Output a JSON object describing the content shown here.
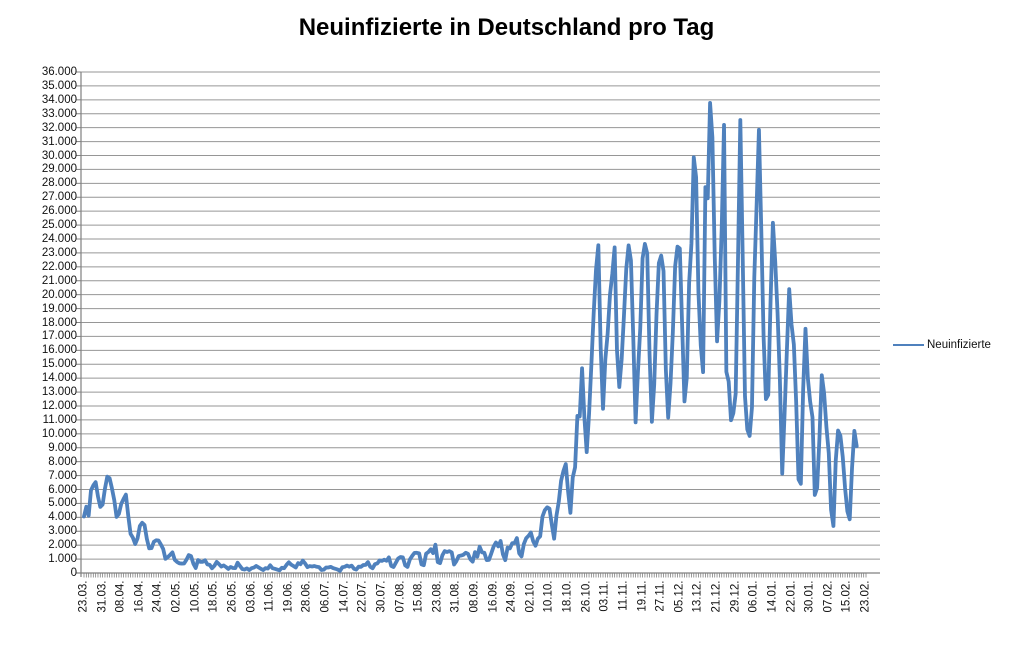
{
  "title": "Neuinfizierte in Deutschland pro Tag",
  "legend": {
    "label": "Neuinfizierte"
  },
  "colors": {
    "series": "#4F81BD",
    "gridline": "#969696",
    "axis": "#808080",
    "label_text": "#111111",
    "title_text": "#000000",
    "background": "#FFFFFF"
  },
  "chart_data": {
    "type": "line",
    "title": "Neuinfizierte in Deutschland pro Tag",
    "legend_entries": [
      "Neuinfizierte"
    ],
    "legend_position": "right",
    "grid": true,
    "y_axis": {
      "min": 0,
      "max": 36000,
      "step": 1000,
      "tick_labels": [
        "36.000",
        "35.000",
        "34.000",
        "33.000",
        "32.000",
        "31.000",
        "30.000",
        "29.000",
        "28.000",
        "27.000",
        "26.000",
        "25.000",
        "24.000",
        "23.000",
        "22.000",
        "21.000",
        "20.000",
        "19.000",
        "18.000",
        "17.000",
        "16.000",
        "15.000",
        "14.000",
        "13.000",
        "12.000",
        "11.000",
        "10.000",
        "9.000",
        "8.000",
        "7.000",
        "6.000",
        "5.000",
        "4.000",
        "3.000",
        "2.000",
        "1.000",
        "0"
      ]
    },
    "x_axis": {
      "tick_labels": [
        "23.03.",
        "31.03.",
        "08.04.",
        "16.04.",
        "24.04.",
        "02.05.",
        "10.05.",
        "18.05.",
        "26.05.",
        "03.06.",
        "11.06.",
        "19.06.",
        "28.06.",
        "06.07.",
        "14.07.",
        "22.07.",
        "30.07.",
        "07.08.",
        "15.08.",
        "23.08.",
        "31.08.",
        "08.09.",
        "16.09.",
        "24.09.",
        "02.10.",
        "10.10.",
        "18.10.",
        "26.10.",
        "03.11.",
        "11.11.",
        "19.11.",
        "27.11.",
        "05.12.",
        "13.12.",
        "21.12.",
        "29.12.",
        "06.01.",
        "14.01.",
        "22.01.",
        "30.01.",
        "07.02.",
        "15.02.",
        "23.02."
      ],
      "rows_per_label": 8
    },
    "series": [
      {
        "name": "Neuinfizierte",
        "color": "#4F81BD",
        "daily_values": [
          4062,
          4764,
          4118,
          5940,
          6294,
          6528,
          5507,
          4751,
          4923,
          6064,
          6922,
          6813,
          6082,
          5236,
          4031,
          4249,
          4974,
          5323,
          5633,
          4133,
          2821,
          2537,
          2082,
          2486,
          3380,
          3609,
          3450,
          2458,
          1775,
          1785,
          2237,
          2352,
          2337,
          2055,
          1737,
          1018,
          1144,
          1304,
          1478,
          945,
          793,
          697,
          679,
          685,
          947,
          1284,
          1209,
          667,
          357,
          933,
          798,
          802,
          913,
          620,
          583,
          342,
          513,
          797,
          638,
          460,
          548,
          431,
          289,
          432,
          362,
          353,
          741,
          507,
          286,
          247,
          333,
          213,
          342,
          394,
          507,
          407,
          301,
          214,
          350,
          318,
          555,
          348,
          301,
          247,
          192,
          378,
          345,
          580,
          770,
          601,
          503,
          397,
          712,
          630,
          890,
          687,
          422,
          498,
          466,
          503,
          446,
          422,
          219,
          239,
          390,
          397,
          442,
          356,
          305,
          248,
          159,
          412,
          444,
          534,
          455,
          529,
          305,
          249,
          454,
          445,
          569,
          583,
          781,
          445,
          340,
          633,
          684,
          902,
          870,
          955,
          879,
          1122,
          509,
          432,
          741,
          1045,
          1147,
          1122,
          555,
          436,
          966,
          1226,
          1445,
          1449,
          1415,
          625,
          561,
          1390,
          1510,
          1707,
          1427,
          2034,
          782,
          711,
          1278,
          1576,
          1507,
          1571,
          1479,
          610,
          852,
          1218,
          1256,
          1311,
          1453,
          1378,
          988,
          814,
          1499,
          1176,
          1892,
          1484,
          1459,
          927,
          948,
          1407,
          1901,
          2194,
          1916,
          2297,
          1345,
          922,
          1821,
          1769,
          2143,
          2153,
          2507,
          1411,
          1192,
          2089,
          2503,
          2673,
          2906,
          2279,
          1959,
          2467,
          2639,
          4058,
          4516,
          4721,
          4622,
          3483,
          2467,
          4122,
          5132,
          6638,
          7334,
          7830,
          5862,
          4325,
          6868,
          7595,
          11287,
          11242,
          14714,
          11176,
          8685,
          11409,
          14964,
          18681,
          21806,
          23553,
          16200,
          11800,
          15352,
          17214,
          19990,
          21506,
          23399,
          16017,
          13363,
          15332,
          18487,
          21866,
          23542,
          22461,
          16947,
          10824,
          14419,
          17561,
          22609,
          23648,
          22964,
          15741,
          10864,
          13554,
          18633,
          22268,
          22806,
          21695,
          14611,
          11169,
          13604,
          17270,
          22046,
          23449,
          23318,
          17767,
          12332,
          14054,
          20815,
          23679,
          29875,
          28438,
          20200,
          16362,
          14432,
          27728,
          26923,
          33777,
          31300,
          22771,
          16643,
          19528,
          24740,
          32195,
          14455,
          13755,
          10976,
          11487,
          12892,
          22459,
          32552,
          22924,
          12690,
          10315,
          9847,
          11897,
          21237,
          26391,
          31849,
          24694,
          16946,
          12497,
          12802,
          19600,
          25164,
          22368,
          18678,
          13882,
          7141,
          11369,
          15974,
          20398,
          17862,
          16417,
          12257,
          6729,
          6412,
          13202,
          17553,
          14022,
          12321,
          11192,
          5608,
          6114,
          9705,
          14211,
          12908,
          10485,
          8616,
          4535,
          3379,
          8072,
          10237,
          9860,
          8354,
          6114,
          4426,
          3856,
          7556,
          10207,
          9113,
          null,
          null,
          null,
          null
        ]
      }
    ]
  }
}
